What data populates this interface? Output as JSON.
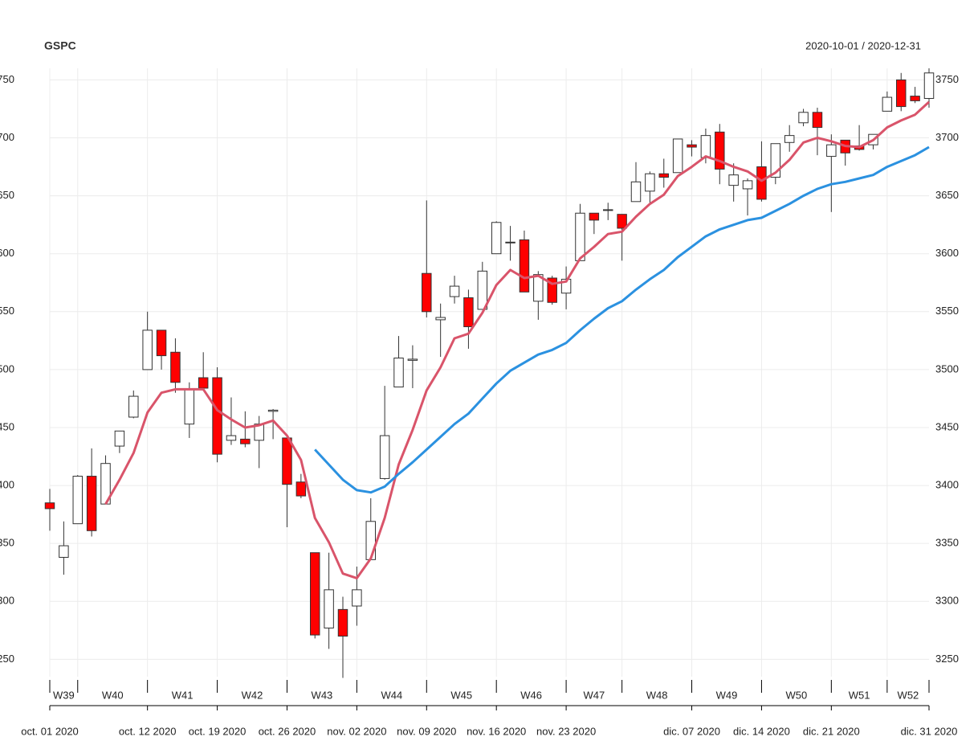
{
  "chart_data": {
    "type": "candlestick",
    "title": "GSPC",
    "subtitle": "2020-10-01 / 2020-12-31",
    "categories": [
      "oct. 01 2020",
      null,
      null,
      null,
      null,
      null,
      null,
      "oct. 12 2020",
      null,
      null,
      null,
      null,
      "oct. 19 2020",
      null,
      null,
      null,
      null,
      "oct. 26 2020",
      null,
      null,
      null,
      null,
      "nov. 02 2020",
      null,
      null,
      null,
      null,
      "nov. 09 2020",
      null,
      null,
      null,
      null,
      "nov. 16 2020",
      null,
      null,
      null,
      null,
      "nov. 23 2020",
      null,
      null,
      null,
      null,
      null,
      null,
      null,
      null,
      "dic. 07 2020",
      null,
      null,
      null,
      null,
      "dic. 14 2020",
      null,
      null,
      null,
      null,
      "dic. 21 2020",
      null,
      null,
      null,
      null,
      null,
      null,
      "dic. 31 2020"
    ],
    "weeks": [
      {
        "label": "W39",
        "start": 0
      },
      {
        "label": "W40",
        "start": 2
      },
      {
        "label": "W41",
        "start": 7
      },
      {
        "label": "W42",
        "start": 12
      },
      {
        "label": "W43",
        "start": 17
      },
      {
        "label": "W44",
        "start": 22
      },
      {
        "label": "W45",
        "start": 27
      },
      {
        "label": "W46",
        "start": 32
      },
      {
        "label": "W47",
        "start": 37
      },
      {
        "label": "W48",
        "start": 41
      },
      {
        "label": "W49",
        "start": 46
      },
      {
        "label": "W50",
        "start": 51
      },
      {
        "label": "W51",
        "start": 56
      },
      {
        "label": "W52",
        "start": 60
      }
    ],
    "open": [
      3385,
      3338,
      3367,
      3408,
      3384,
      3434,
      3459,
      3500,
      3534,
      3515,
      3453,
      3493,
      3493,
      3439,
      3440,
      3439,
      3464,
      3441,
      3403,
      3342,
      3277,
      3293,
      3296,
      3336,
      3406,
      3485,
      3508,
      3583,
      3543,
      3563,
      3562,
      3552,
      3600,
      3610,
      3612,
      3559,
      3579,
      3566,
      3594,
      3635,
      3638,
      3634,
      3645,
      3654,
      3669,
      3670,
      3694,
      3683,
      3705,
      3659,
      3656,
      3675,
      3666,
      3696,
      3713,
      3722,
      3684,
      3698,
      3693,
      3694,
      3723,
      3750,
      3736,
      3734
    ],
    "high": [
      3397,
      3369,
      3409,
      3432,
      3426,
      3447,
      3482,
      3550,
      3534,
      3527,
      3489,
      3515,
      3502,
      3476,
      3464,
      3460,
      3466,
      3441,
      3410,
      3342,
      3342,
      3304,
      3330,
      3389,
      3486,
      3529,
      3521,
      3646,
      3557,
      3581,
      3569,
      3593,
      3628,
      3624,
      3620,
      3585,
      3581,
      3589,
      3643,
      3635,
      3644,
      3634,
      3679,
      3671,
      3682,
      3699,
      3698,
      3708,
      3712,
      3678,
      3665,
      3697,
      3695,
      3711,
      3725,
      3726,
      3703,
      3698,
      3711,
      3703,
      3740,
      3756,
      3744,
      3760
    ],
    "low": [
      3361,
      3323,
      3367,
      3356,
      3384,
      3428,
      3458,
      3500,
      3500,
      3480,
      3441,
      3483,
      3420,
      3435,
      3433,
      3415,
      3440,
      3364,
      3389,
      3268,
      3259,
      3234,
      3279,
      3336,
      3405,
      3485,
      3484,
      3545,
      3511,
      3557,
      3518,
      3552,
      3600,
      3594,
      3567,
      3543,
      3556,
      3552,
      3594,
      3617,
      3629,
      3594,
      3645,
      3644,
      3657,
      3670,
      3684,
      3678,
      3660,
      3645,
      3633,
      3645,
      3660,
      3688,
      3710,
      3685,
      3636,
      3676,
      3689,
      3690,
      3723,
      3723,
      3730,
      3726
    ],
    "close": [
      3380,
      3348,
      3408,
      3361,
      3419,
      3447,
      3477,
      3534,
      3512,
      3489,
      3483,
      3484,
      3427,
      3443,
      3436,
      3453,
      3465,
      3401,
      3391,
      3271,
      3310,
      3270,
      3310,
      3369,
      3443,
      3510,
      3509,
      3550,
      3545,
      3572,
      3537,
      3585,
      3627,
      3610,
      3567,
      3582,
      3558,
      3578,
      3635,
      3629,
      3638,
      3622,
      3662,
      3669,
      3666,
      3699,
      3692,
      3702,
      3673,
      3668,
      3663,
      3647,
      3695,
      3702,
      3722,
      3709,
      3694,
      3687,
      3690,
      3703,
      3735,
      3727,
      3732,
      3756
    ],
    "up_color": "#ffffff",
    "down_color": "#ff0000",
    "series": [
      {
        "color": "#d9546a",
        "values": [
          null,
          null,
          null,
          null,
          3384,
          3405,
          3428,
          3463,
          3480,
          3483,
          3483,
          3483,
          3465,
          3457,
          3450,
          3452,
          3456,
          3443,
          3422,
          3372,
          3351,
          3324,
          3320,
          3337,
          3372,
          3418,
          3448,
          3482,
          3502,
          3527,
          3531,
          3549,
          3573,
          3586,
          3579,
          3581,
          3574,
          3576,
          3596,
          3606,
          3617,
          3619,
          3632,
          3643,
          3651,
          3667,
          3675,
          3684,
          3680,
          3675,
          3671,
          3663,
          3670,
          3681,
          3696,
          3700,
          3697,
          3693,
          3692,
          3698,
          3709,
          3715,
          3720,
          3731
        ]
      },
      {
        "color": "#2b91e0",
        "values": [
          null,
          null,
          null,
          null,
          null,
          null,
          null,
          null,
          null,
          null,
          null,
          null,
          null,
          null,
          null,
          null,
          null,
          null,
          null,
          3431,
          3418,
          3405,
          3396,
          3394,
          3399,
          3410,
          3420,
          3431,
          3442,
          3453,
          3462,
          3475,
          3488,
          3499,
          3506,
          3513,
          3517,
          3523,
          3534,
          3544,
          3553,
          3559,
          3569,
          3578,
          3586,
          3597,
          3606,
          3615,
          3621,
          3625,
          3629,
          3631,
          3637,
          3643,
          3650,
          3656,
          3660,
          3662,
          3665,
          3668,
          3675,
          3680,
          3685,
          3692
        ]
      }
    ],
    "ylim": [
      3235,
      3760
    ],
    "yticks": [
      3250,
      3300,
      3350,
      3400,
      3450,
      3500,
      3550,
      3600,
      3650,
      3700,
      3750
    ],
    "grid": true
  }
}
